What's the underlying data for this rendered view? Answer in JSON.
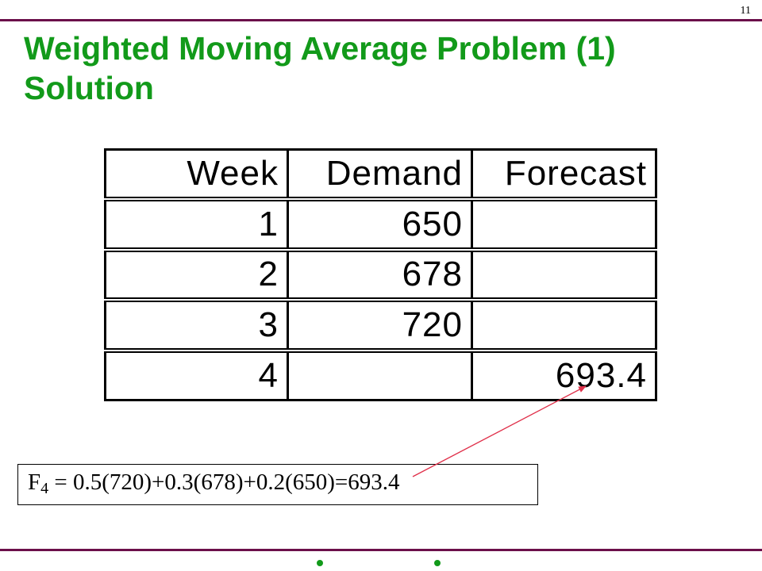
{
  "slide": {
    "page_number": "11",
    "title_line1": "Weighted Moving Average Problem (1)",
    "title_line2": "Solution"
  },
  "table": {
    "headers": [
      "Week",
      "Demand",
      "Forecast"
    ],
    "rows": [
      {
        "week": "1",
        "demand": "650",
        "forecast": ""
      },
      {
        "week": "2",
        "demand": "678",
        "forecast": ""
      },
      {
        "week": "3",
        "demand": "720",
        "forecast": ""
      },
      {
        "week": "4",
        "demand": "",
        "forecast": "693.4"
      }
    ]
  },
  "formula": {
    "variable": "F",
    "subscript": "4",
    "expression": " = 0.5(720)+0.3(678)+0.2(650)=693.4"
  },
  "colors": {
    "title": "#129a1a",
    "rule": "#6b0f4a",
    "arrow": "#e0304a",
    "bullet": "#129a1a"
  }
}
